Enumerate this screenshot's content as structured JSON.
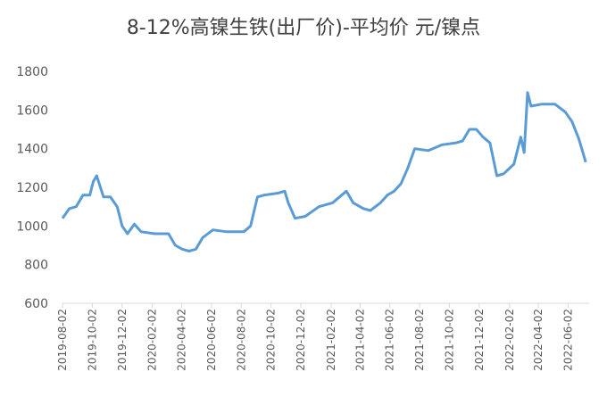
{
  "chart_data": {
    "type": "line",
    "title": "8-12%高镍生铁(出厂价)-平均价 元/镍点",
    "x": [
      "2019-08-02",
      "2019-08-16",
      "2019-08-30",
      "2019-09-13",
      "2019-09-27",
      "2019-10-04",
      "2019-10-11",
      "2019-10-25",
      "2019-11-08",
      "2019-11-22",
      "2019-12-02",
      "2019-12-13",
      "2019-12-27",
      "2020-01-10",
      "2020-02-07",
      "2020-03-06",
      "2020-03-20",
      "2020-04-03",
      "2020-04-17",
      "2020-05-01",
      "2020-05-15",
      "2020-06-05",
      "2020-07-03",
      "2020-08-07",
      "2020-08-21",
      "2020-09-04",
      "2020-09-18",
      "2020-10-16",
      "2020-10-30",
      "2020-11-06",
      "2020-11-20",
      "2020-12-11",
      "2021-01-08",
      "2021-02-05",
      "2021-03-05",
      "2021-03-19",
      "2021-04-09",
      "2021-04-23",
      "2021-05-14",
      "2021-05-28",
      "2021-06-11",
      "2021-06-25",
      "2021-07-09",
      "2021-07-23",
      "2021-08-20",
      "2021-09-17",
      "2021-10-15",
      "2021-10-29",
      "2021-11-12",
      "2021-11-26",
      "2021-12-10",
      "2021-12-24",
      "2022-01-07",
      "2022-01-21",
      "2022-02-11",
      "2022-02-25",
      "2022-03-04",
      "2022-03-11",
      "2022-03-18",
      "2022-04-08",
      "2022-05-06",
      "2022-05-27",
      "2022-06-10",
      "2022-06-24",
      "2022-07-08"
    ],
    "series": [
      {
        "name": "8-12%高镍生铁(出厂价)-平均价",
        "color": "#5b9bd5",
        "values": [
          1040,
          1090,
          1100,
          1160,
          1160,
          1230,
          1260,
          1150,
          1150,
          1100,
          1000,
          960,
          1010,
          970,
          960,
          960,
          900,
          880,
          870,
          880,
          940,
          980,
          970,
          970,
          1000,
          1150,
          1160,
          1170,
          1180,
          1120,
          1040,
          1050,
          1100,
          1120,
          1180,
          1120,
          1090,
          1080,
          1120,
          1160,
          1180,
          1220,
          1300,
          1400,
          1390,
          1420,
          1430,
          1440,
          1500,
          1500,
          1460,
          1430,
          1260,
          1270,
          1320,
          1460,
          1380,
          1690,
          1620,
          1630,
          1630,
          1590,
          1540,
          1450,
          1330
        ]
      }
    ],
    "xlim": [
      "2019-08-02",
      "2022-07-15"
    ],
    "xticks": [
      "2019-08-02",
      "2019-10-02",
      "2019-12-02",
      "2020-02-02",
      "2020-04-02",
      "2020-06-02",
      "2020-08-02",
      "2020-10-02",
      "2020-12-02",
      "2021-02-02",
      "2021-04-02",
      "2021-06-02",
      "2021-08-02",
      "2021-10-02",
      "2021-12-02",
      "2022-02-02",
      "2022-04-02",
      "2022-06-02"
    ],
    "ylim": [
      600,
      1800
    ],
    "yticks": [
      600,
      800,
      1000,
      1200,
      1400,
      1600,
      1800
    ],
    "grid": false
  }
}
